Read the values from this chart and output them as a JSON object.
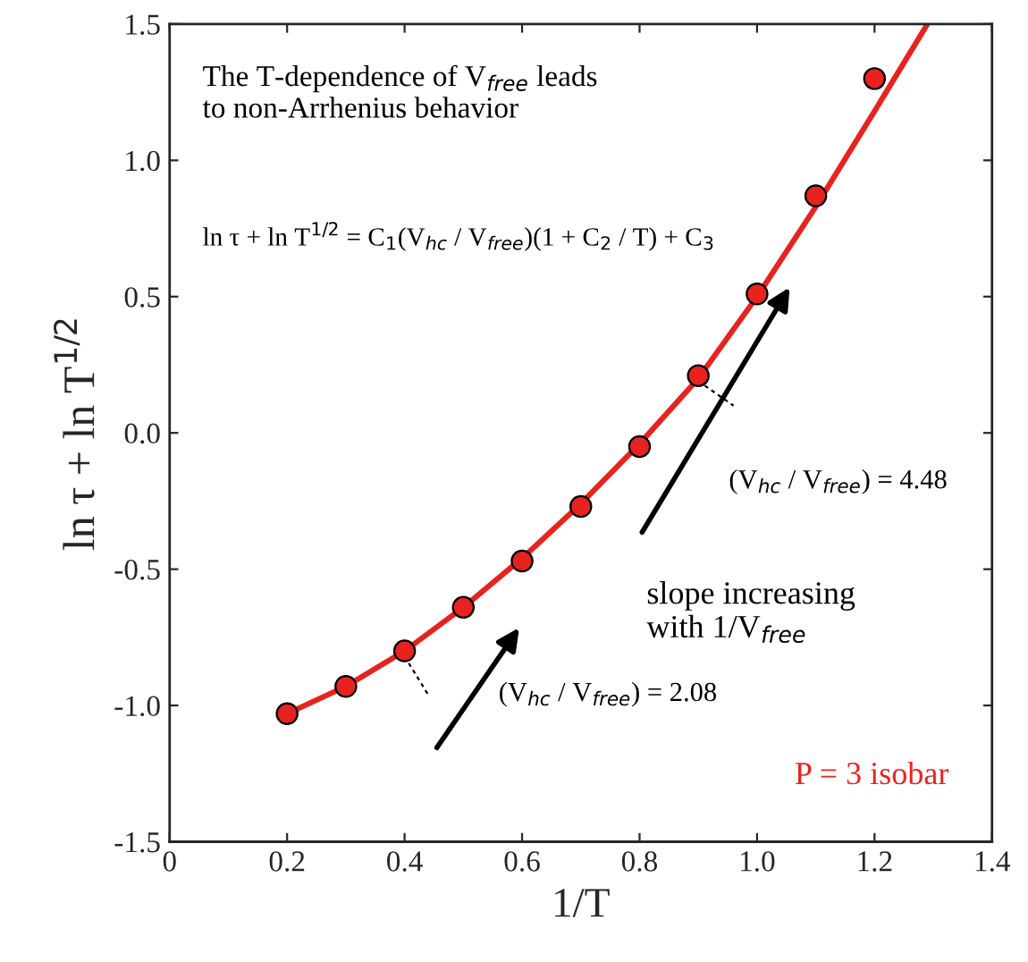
{
  "chart_data": {
    "type": "scatter",
    "xlabel": "1/T",
    "ylabel": "ln τ + ln T$^{1/2}$",
    "xlim": [
      0,
      1.4
    ],
    "ylim": [
      -1.5,
      1.5
    ],
    "xticks": [
      0,
      0.2,
      0.4,
      0.6,
      0.8,
      {
        "value": 1,
        "label": "1.0"
      },
      1.2,
      1.4
    ],
    "yticks": [
      -1.5,
      {
        "value": -1,
        "label": "-1.0"
      },
      -0.5,
      {
        "value": 0,
        "label": "0.0"
      },
      0.5,
      {
        "value": 1,
        "label": "1.0"
      },
      1.5
    ],
    "grid": false,
    "legend": false,
    "series": [
      {
        "type": "line",
        "color": "#e8231f",
        "x": [
          0.2,
          0.3,
          0.4,
          0.5,
          0.6,
          0.7,
          0.8,
          0.9,
          1.0,
          1.1,
          1.2,
          1.29
        ],
        "values": [
          -1.03,
          -0.93,
          -0.8,
          -0.64,
          -0.46,
          -0.26,
          -0.04,
          0.2,
          0.5,
          0.83,
          1.18,
          1.5
        ]
      },
      {
        "color": "#e8231f",
        "marker": "circle",
        "x": [
          0.2,
          0.3,
          0.4,
          0.5,
          0.6,
          0.7,
          0.8,
          0.9,
          1.0,
          1.1,
          1.2
        ],
        "values": [
          -1.03,
          -0.93,
          -0.8,
          -0.64,
          -0.47,
          -0.27,
          -0.05,
          0.21,
          0.51,
          0.87,
          1.3
        ]
      }
    ],
    "annotations": [
      "The T-dependence of V$_{free}$ leads\nto non-Arrhenius behavior",
      "ln τ + ln T$^{1/2}$ = C$_{1}$(V$_{hc}$ / V$_{free}$)(1 + C$_{2}$ / T) + C$_{3}$",
      "(V$_{hc}$ / V$_{free}$) = 4.48",
      "slope increasing\nwith 1/V$_{free}$",
      "(V$_{hc}$ / V$_{free}$) = 2.08",
      "P = 3 isobar"
    ]
  }
}
